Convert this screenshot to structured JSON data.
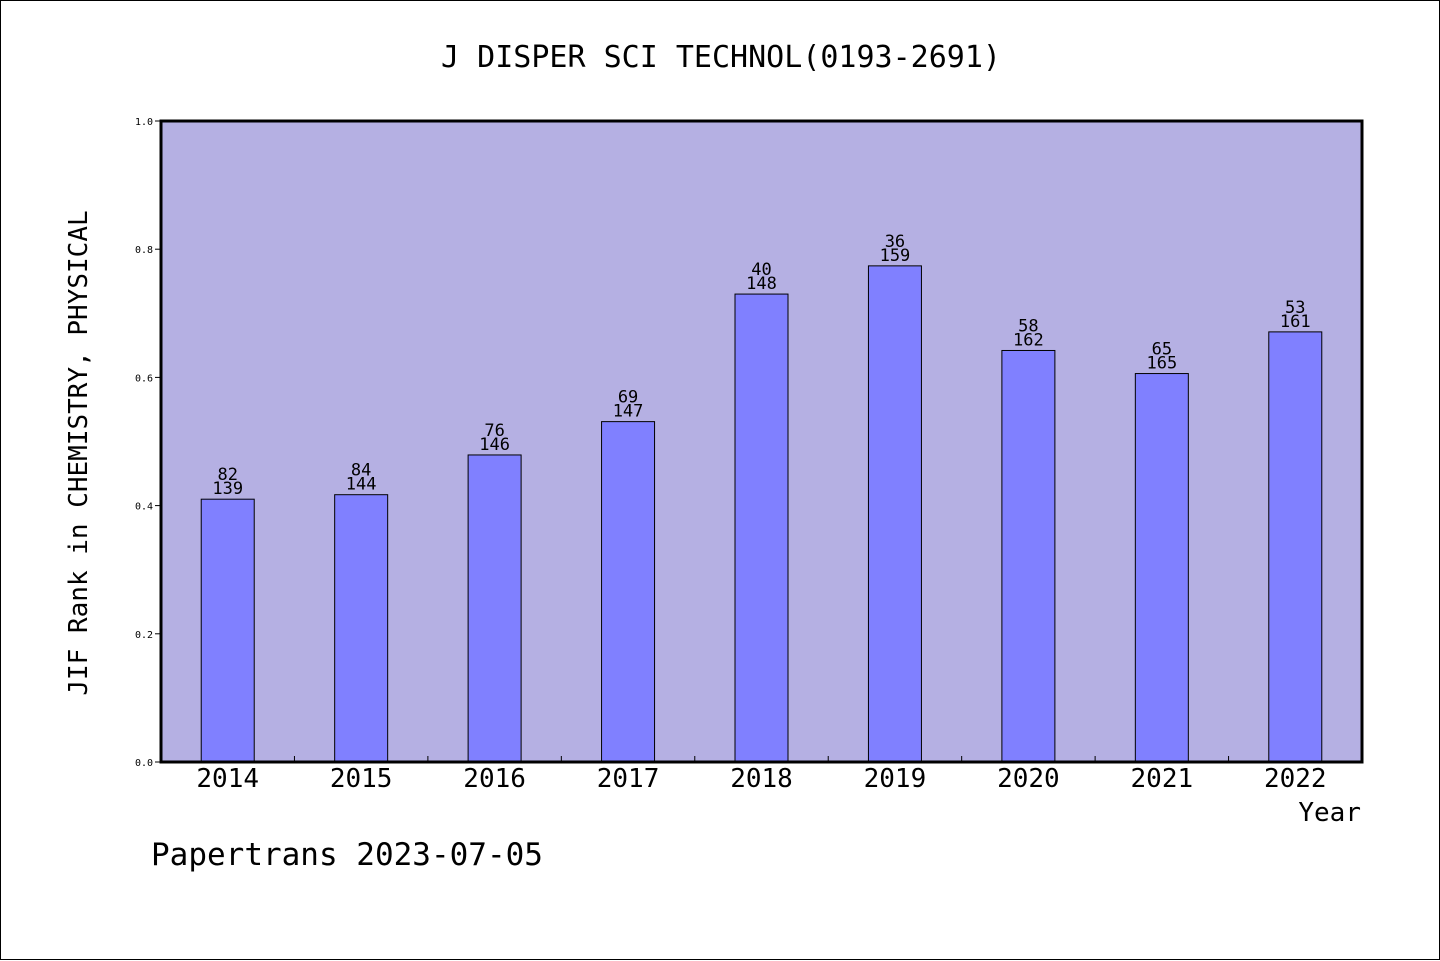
{
  "chart_data": {
    "type": "bar",
    "title": "J DISPER SCI TECHNOL(0193-2691)",
    "xlabel": "Year",
    "ylabel": "JIF Rank in CHEMISTRY, PHYSICAL",
    "ylim": [
      0,
      1.0
    ],
    "yticks": [
      "0.0",
      "0.2",
      "0.4",
      "0.6",
      "0.8",
      "1.0"
    ],
    "grid": false,
    "categories": [
      "2014",
      "2015",
      "2016",
      "2017",
      "2018",
      "2019",
      "2020",
      "2021",
      "2022"
    ],
    "values": [
      0.41,
      0.417,
      0.479,
      0.531,
      0.73,
      0.774,
      0.642,
      0.606,
      0.671
    ],
    "rank_labels": [
      "82",
      "84",
      "76",
      "69",
      "40",
      "36",
      "58",
      "65",
      "53"
    ],
    "total_labels": [
      "139",
      "144",
      "146",
      "147",
      "148",
      "159",
      "162",
      "165",
      "161"
    ],
    "colors": {
      "plot_background": "#b5b0e3",
      "bar_fill": "#8080ff",
      "bar_stroke": "#000000"
    }
  },
  "footer": {
    "credit": "Papertrans 2023-07-05"
  }
}
